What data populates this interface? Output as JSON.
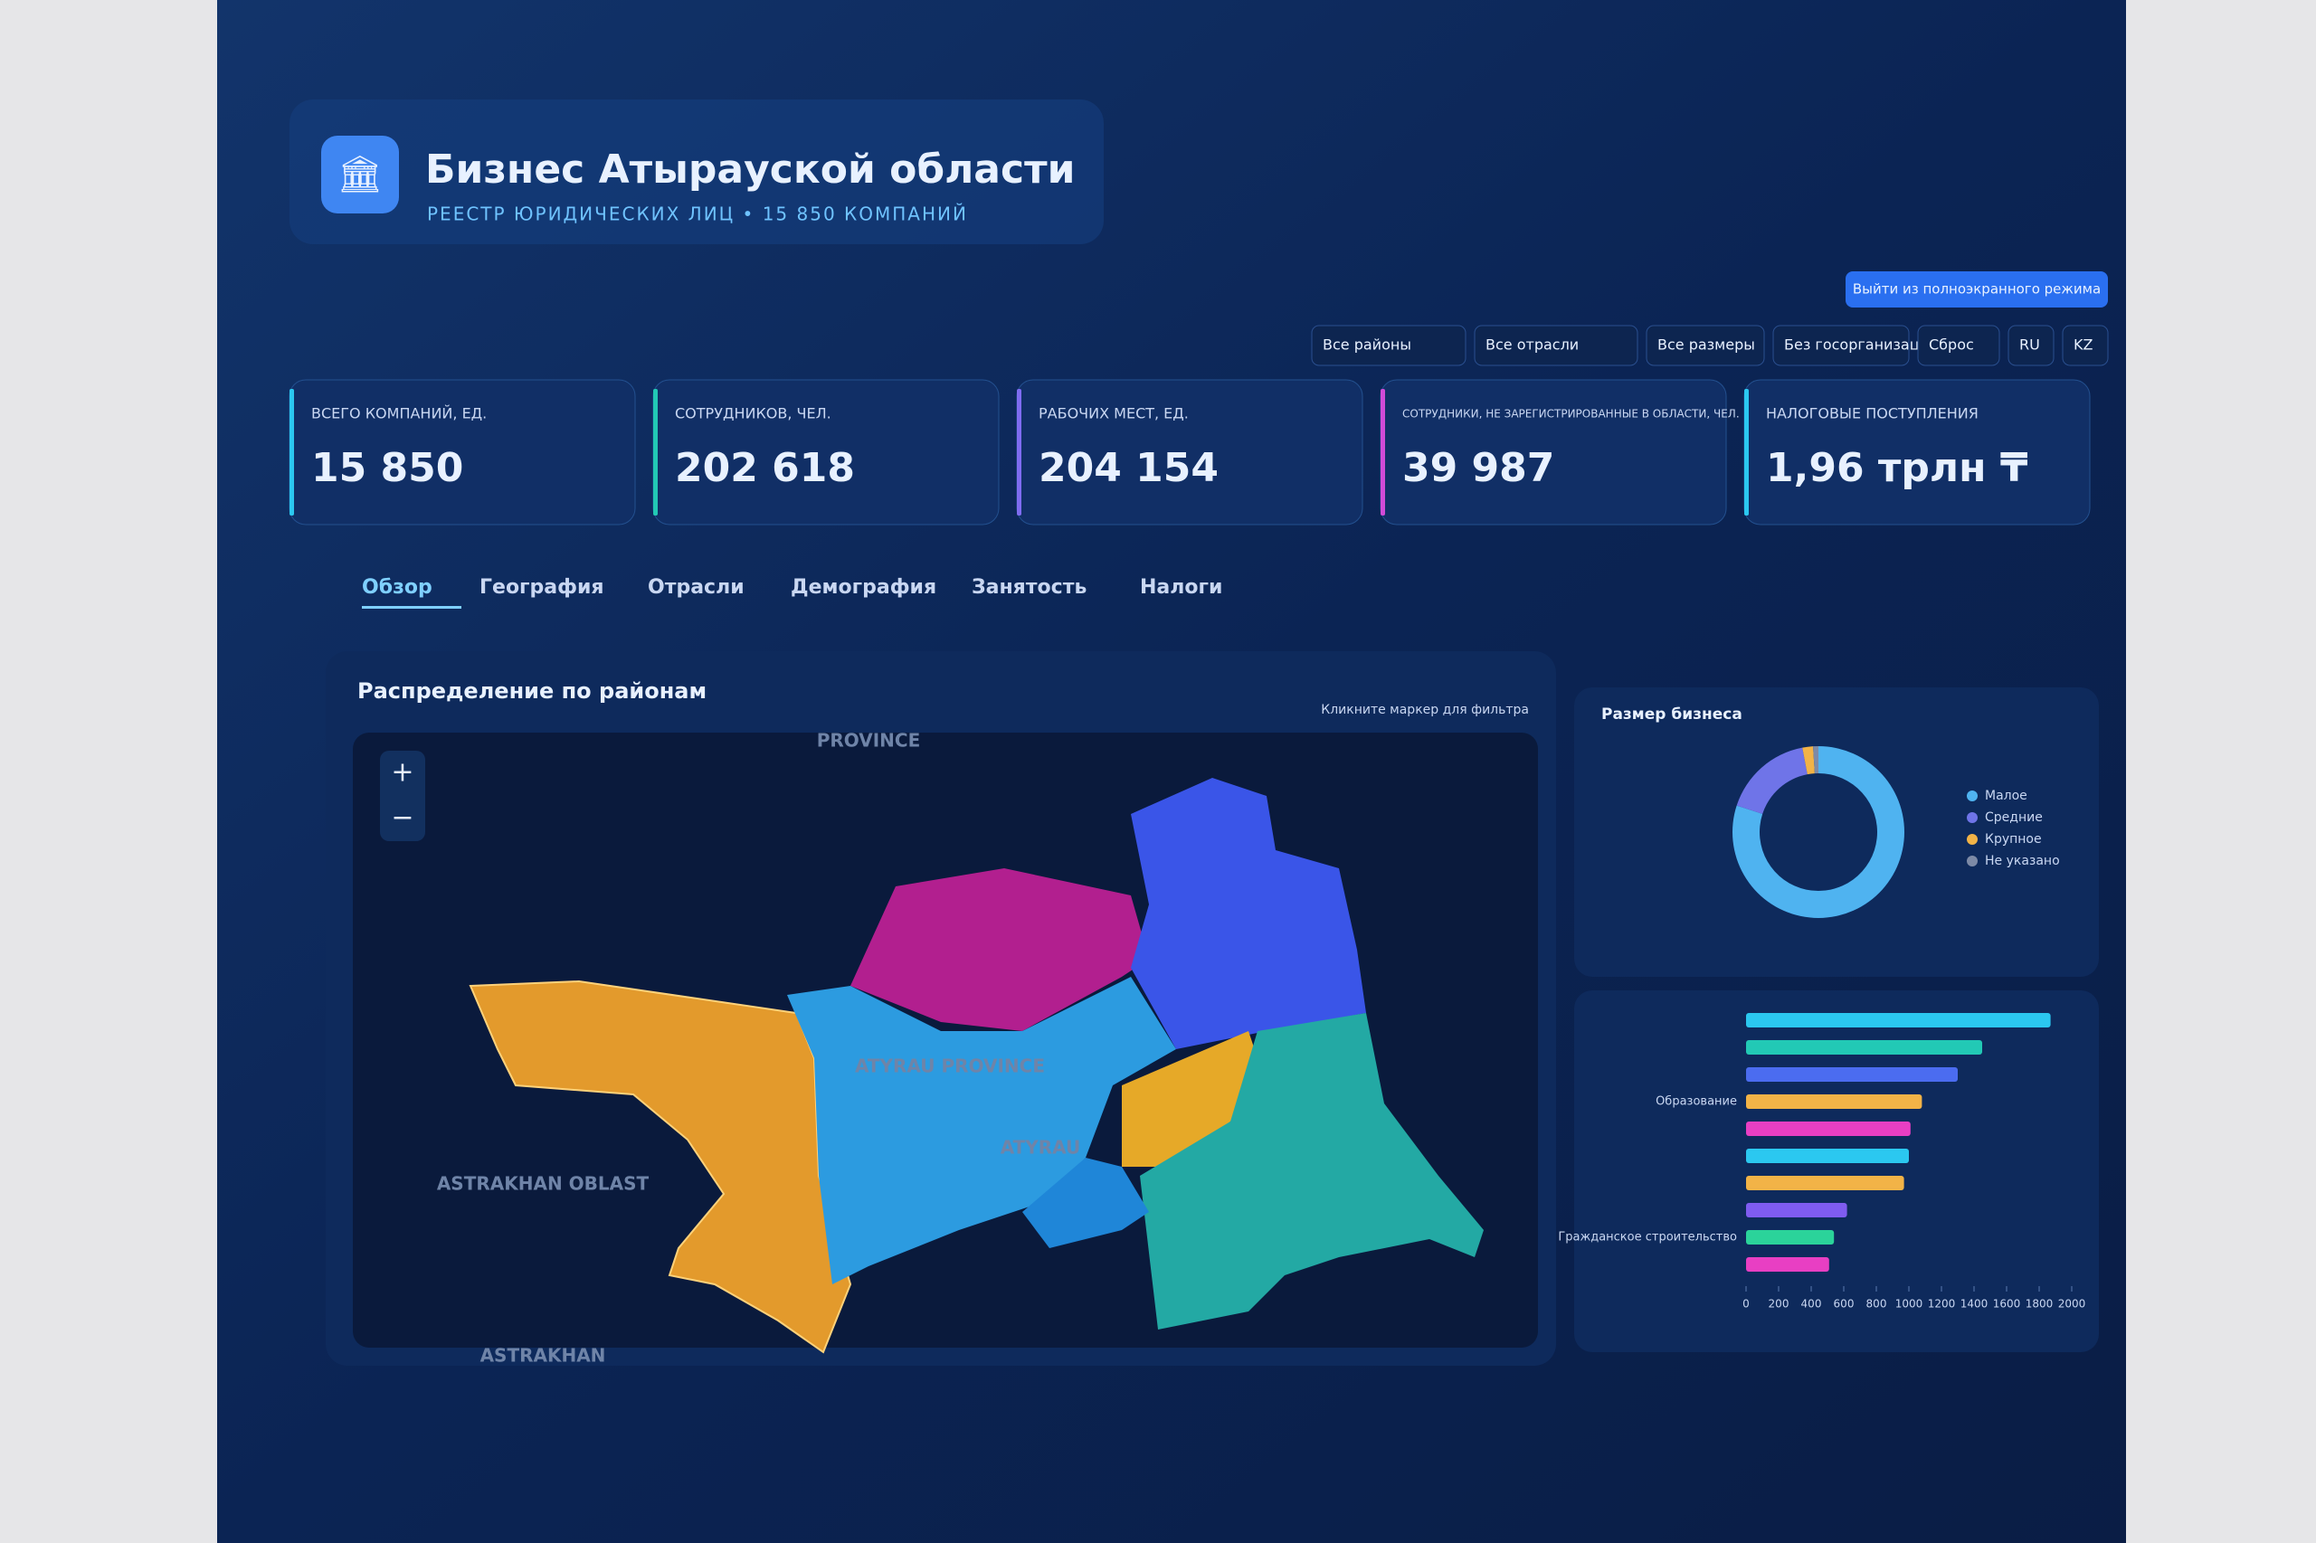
{
  "header": {
    "title": "Бизнес Атырауской области",
    "subtitle": "РЕЕСТР ЮРИДИЧЕСКИХ ЛИЦ • 15 850 КОМПАНИЙ"
  },
  "fullscreen_button": "Выйти из полноэкранного режима",
  "filters": [
    "Все районы",
    "Все отрасли",
    "Все размеры",
    "Без госорганизаций",
    "Сброс",
    "RU",
    "KZ"
  ],
  "kpis": [
    {
      "label": "ВСЕГО КОМПАНИЙ, ЕД.",
      "value": "15 850"
    },
    {
      "label": "СОТРУДНИКОВ, ЧЕЛ.",
      "value": "202 618"
    },
    {
      "label": "РАБОЧИХ МЕСТ, ЕД.",
      "value": "204 154"
    },
    {
      "label": "СОТРУДНИКИ, НЕ ЗАРЕГИСТРИРОВАННЫЕ В ОБЛАСТИ, ЧЕЛ.",
      "value": "39 987"
    },
    {
      "label": "НАЛОГОВЫЕ ПОСТУПЛЕНИЯ",
      "value": "1,96 трлн ₸"
    }
  ],
  "tabs": [
    "Обзор",
    "География",
    "Отрасли",
    "Демография",
    "Занятость",
    "Налоги"
  ],
  "map": {
    "title": "Распределение по районам",
    "hint": "Кликните маркер для фильтра",
    "labels": [
      "PROVINCE",
      "ASTRAKHAN OBLAST",
      "ASTRAKHAN",
      "ATYRAU PROVINCE",
      "ATYRAU"
    ]
  },
  "chart_data": [
    {
      "type": "pie",
      "title": "Размер бизнеса",
      "series": [
        {
          "name": "Малое",
          "color": "#4fb3f0",
          "values": [
            80
          ]
        },
        {
          "name": "Средние",
          "color": "#6f74e8",
          "values": [
            17
          ]
        },
        {
          "name": "Крупное",
          "color": "#f2b347",
          "values": [
            2
          ]
        },
        {
          "name": "Не указано",
          "color": "#7d8aa6",
          "values": [
            1
          ]
        }
      ]
    },
    {
      "type": "hbar",
      "categories": [
        null,
        null,
        null,
        "Образование",
        null,
        null,
        null,
        null,
        "Гражданское строительство",
        null
      ],
      "values": [
        1870,
        1450,
        1300,
        1080,
        1010,
        1000,
        970,
        620,
        540,
        510
      ],
      "colors": [
        "#2bc8f0",
        "#22c9b5",
        "#4b6cf0",
        "#f2b347",
        "#e83fc3",
        "#2bc8f0",
        "#f2b347",
        "#7f5cf0",
        "#2bd39a",
        "#e83fc3"
      ],
      "xlim": [
        0,
        2000
      ],
      "xticks": [
        0,
        200,
        400,
        600,
        800,
        1000,
        1200,
        1400,
        1600,
        1800,
        2000
      ]
    }
  ]
}
